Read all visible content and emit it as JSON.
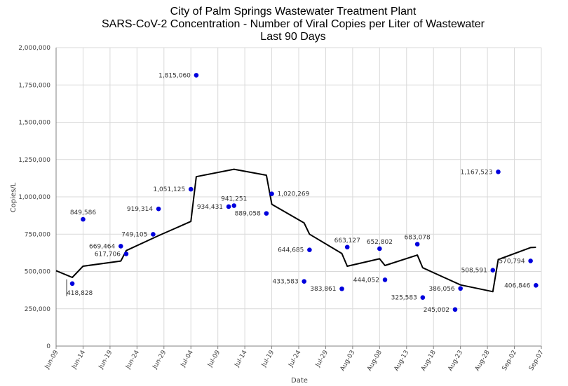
{
  "chart_data": {
    "type": "scatter",
    "title": "City of Palm Springs Wastewater Treatment Plant",
    "subtitle": "SARS-CoV-2 Concentration - Number of Viral Copies per Liter of Wastewater",
    "subtitle2": "Last 90 Days",
    "xlabel": "Date",
    "ylabel": "Copies/L",
    "ylim": [
      0,
      2000000
    ],
    "xlim": [
      "2022-06-09",
      "2022-09-07"
    ],
    "y_ticks": [
      "0",
      "250,000",
      "500,000",
      "750,000",
      "1,000,000",
      "1,250,000",
      "1,500,000",
      "1,750,000",
      "2,000,000"
    ],
    "x_ticks": [
      "Jun-09",
      "Jun-14",
      "Jun-19",
      "Jun-24",
      "Jun-29",
      "Jul-04",
      "Jul-09",
      "Jul-14",
      "Jul-19",
      "Jul-24",
      "Jul-29",
      "Aug-03",
      "Aug-08",
      "Aug-13",
      "Aug-18",
      "Aug-23",
      "Aug-28",
      "Sep-02",
      "Sep-07"
    ],
    "grid": {
      "x": true,
      "y": true
    },
    "series": [
      {
        "type": "scatter",
        "color": "#0000dd",
        "points": [
          {
            "x": "2022-06-12",
            "y": 418828,
            "label": "418,828"
          },
          {
            "x": "2022-06-14",
            "y": 849586,
            "label": "849,586"
          },
          {
            "x": "2022-06-21",
            "y": 669464,
            "label": "669,464"
          },
          {
            "x": "2022-06-22",
            "y": 617706,
            "label": "617,706"
          },
          {
            "x": "2022-06-27",
            "y": 749105,
            "label": "749,105"
          },
          {
            "x": "2022-06-28",
            "y": 919314,
            "label": "919,314"
          },
          {
            "x": "2022-07-04",
            "y": 1051125,
            "label": "1,051,125"
          },
          {
            "x": "2022-07-05",
            "y": 1815060,
            "label": "1,815,060"
          },
          {
            "x": "2022-07-11",
            "y": 934431,
            "label": "934,431"
          },
          {
            "x": "2022-07-12",
            "y": 941251,
            "label": "941,251"
          },
          {
            "x": "2022-07-18",
            "y": 889058,
            "label": "889,058"
          },
          {
            "x": "2022-07-19",
            "y": 1020269,
            "label": "1,020,269"
          },
          {
            "x": "2022-07-25",
            "y": 433583,
            "label": "433,583"
          },
          {
            "x": "2022-07-26",
            "y": 644685,
            "label": "644,685"
          },
          {
            "x": "2022-08-01",
            "y": 383861,
            "label": "383,861"
          },
          {
            "x": "2022-08-02",
            "y": 663127,
            "label": "663,127"
          },
          {
            "x": "2022-08-08",
            "y": 652802,
            "label": "652,802"
          },
          {
            "x": "2022-08-09",
            "y": 444052,
            "label": "444,052"
          },
          {
            "x": "2022-08-15",
            "y": 683078,
            "label": "683,078"
          },
          {
            "x": "2022-08-16",
            "y": 325583,
            "label": "325,583"
          },
          {
            "x": "2022-08-22",
            "y": 245002,
            "label": "245,002"
          },
          {
            "x": "2022-08-23",
            "y": 386056,
            "label": "386,056"
          },
          {
            "x": "2022-08-29",
            "y": 508591,
            "label": "508,591"
          },
          {
            "x": "2022-08-30",
            "y": 1167523,
            "label": "1,167,523"
          },
          {
            "x": "2022-09-05",
            "y": 570794,
            "label": "570,794"
          },
          {
            "x": "2022-09-06",
            "y": 406846,
            "label": "406,846"
          }
        ]
      },
      {
        "type": "line",
        "color": "#000000",
        "points": [
          {
            "x": "2022-06-09",
            "y": 505000
          },
          {
            "x": "2022-06-12",
            "y": 460000
          },
          {
            "x": "2022-06-14",
            "y": 535000
          },
          {
            "x": "2022-06-21",
            "y": 570000
          },
          {
            "x": "2022-06-22",
            "y": 640000
          },
          {
            "x": "2022-06-28",
            "y": 740000
          },
          {
            "x": "2022-07-04",
            "y": 835000
          },
          {
            "x": "2022-07-05",
            "y": 1135000
          },
          {
            "x": "2022-07-12",
            "y": 1185000
          },
          {
            "x": "2022-07-18",
            "y": 1145000
          },
          {
            "x": "2022-07-19",
            "y": 950000
          },
          {
            "x": "2022-07-25",
            "y": 825000
          },
          {
            "x": "2022-07-26",
            "y": 750000
          },
          {
            "x": "2022-08-01",
            "y": 620000
          },
          {
            "x": "2022-08-02",
            "y": 535000
          },
          {
            "x": "2022-08-08",
            "y": 585000
          },
          {
            "x": "2022-08-09",
            "y": 540000
          },
          {
            "x": "2022-08-15",
            "y": 610000
          },
          {
            "x": "2022-08-16",
            "y": 525000
          },
          {
            "x": "2022-08-23",
            "y": 410000
          },
          {
            "x": "2022-08-29",
            "y": 365000
          },
          {
            "x": "2022-08-30",
            "y": 580000
          },
          {
            "x": "2022-09-05",
            "y": 660000
          },
          {
            "x": "2022-09-06",
            "y": 662000
          }
        ]
      }
    ]
  }
}
